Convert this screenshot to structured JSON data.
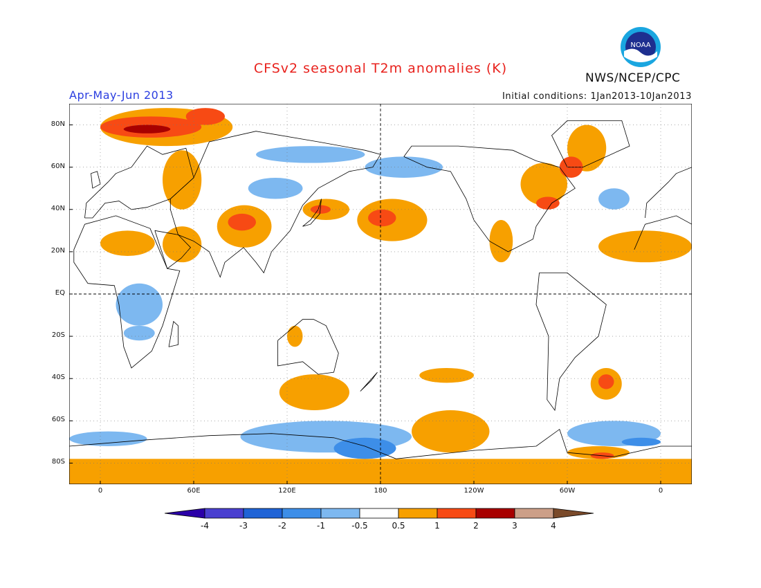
{
  "header": {
    "title": "CFSv2 seasonal T2m anomalies (K)",
    "period": "Apr-May-Jun 2013",
    "initial_conditions": "Initial conditions: 1Jan2013-10Jan2013",
    "agency": "NWS/NCEP/CPC",
    "logo_text": "NOAA",
    "title_color": "#e8211c",
    "period_color": "#2b3ee0"
  },
  "map": {
    "lon_range": [
      -20,
      380
    ],
    "lat_range": [
      -90,
      90
    ],
    "lat_ticks": [
      {
        "lat": 80,
        "label": "80N"
      },
      {
        "lat": 60,
        "label": "60N"
      },
      {
        "lat": 40,
        "label": "40N"
      },
      {
        "lat": 20,
        "label": "20N"
      },
      {
        "lat": 0,
        "label": "EQ"
      },
      {
        "lat": -20,
        "label": "20S"
      },
      {
        "lat": -40,
        "label": "40S"
      },
      {
        "lat": -60,
        "label": "60S"
      },
      {
        "lat": -80,
        "label": "80S"
      }
    ],
    "lon_ticks": [
      {
        "lon": 0,
        "label": "0"
      },
      {
        "lon": 60,
        "label": "60E"
      },
      {
        "lon": 120,
        "label": "120E"
      },
      {
        "lon": 180,
        "label": "180"
      },
      {
        "lon": 240,
        "label": "120W"
      },
      {
        "lon": 300,
        "label": "60W"
      },
      {
        "lon": 360,
        "label": "0"
      }
    ],
    "grid": true
  },
  "colorbar": {
    "labels": [
      "-4",
      "-3",
      "-2",
      "-1",
      "-0.5",
      "0.5",
      "1",
      "2",
      "3",
      "4"
    ],
    "colors": [
      "#2b00a8",
      "#4a3fd0",
      "#1f63d6",
      "#3d8ee8",
      "#7db8f0",
      "#ffffff",
      "#f7a000",
      "#f74a14",
      "#a80000",
      "#cc9f88",
      "#7a4a2a"
    ]
  },
  "anomaly_regions": [
    {
      "name": "Arctic Barents",
      "lon": [
        0,
        85
      ],
      "lat": [
        70,
        88
      ],
      "level": 1
    },
    {
      "name": "Svalbard core",
      "lon": [
        0,
        65
      ],
      "lat": [
        74,
        84
      ],
      "level": 2
    },
    {
      "name": "Kara Sea",
      "lon": [
        55,
        80
      ],
      "lat": [
        80,
        88
      ],
      "level": 2
    },
    {
      "name": "Svalbard peak",
      "lon": [
        15,
        45
      ],
      "lat": [
        76,
        80
      ],
      "level": 3
    },
    {
      "name": "Ural belt",
      "lon": [
        40,
        65
      ],
      "lat": [
        40,
        68
      ],
      "level": 1
    },
    {
      "name": "North Africa Sahara",
      "lon": [
        0,
        35
      ],
      "lat": [
        18,
        30
      ],
      "level": 1
    },
    {
      "name": "Arabia",
      "lon": [
        40,
        65
      ],
      "lat": [
        15,
        32
      ],
      "level": 1
    },
    {
      "name": "Tibet",
      "lon": [
        75,
        110
      ],
      "lat": [
        22,
        42
      ],
      "level": 1
    },
    {
      "name": "Tibet core",
      "lon": [
        82,
        100
      ],
      "lat": [
        30,
        38
      ],
      "level": 2
    },
    {
      "name": "Japan",
      "lon": [
        130,
        160
      ],
      "lat": [
        35,
        45
      ],
      "level": 1
    },
    {
      "name": "Japan core",
      "lon": [
        135,
        148
      ],
      "lat": [
        38,
        42
      ],
      "level": 2
    },
    {
      "name": "North Pacific",
      "lon": [
        165,
        210
      ],
      "lat": [
        25,
        45
      ],
      "level": 1
    },
    {
      "name": "North Pacific core",
      "lon": [
        172,
        190
      ],
      "lat": [
        32,
        40
      ],
      "level": 2
    },
    {
      "name": "Central Canada",
      "lon": [
        270,
        300
      ],
      "lat": [
        42,
        62
      ],
      "level": 1
    },
    {
      "name": "Labrador",
      "lon": [
        295,
        310
      ],
      "lat": [
        55,
        65
      ],
      "level": 2
    },
    {
      "name": "Great Lakes",
      "lon": [
        280,
        295
      ],
      "lat": [
        40,
        46
      ],
      "level": 2
    },
    {
      "name": "Greenland coast",
      "lon": [
        300,
        325
      ],
      "lat": [
        58,
        80
      ],
      "level": 1
    },
    {
      "name": "Mexico",
      "lon": [
        250,
        265
      ],
      "lat": [
        15,
        35
      ],
      "level": 1
    },
    {
      "name": "Atlantic",
      "lon": [
        320,
        380
      ],
      "lat": [
        15,
        30
      ],
      "level": 1
    },
    {
      "name": "South Atlantic",
      "lon": [
        315,
        335
      ],
      "lat": [
        -50,
        -35
      ],
      "level": 1
    },
    {
      "name": "South Atlantic core",
      "lon": [
        320,
        330
      ],
      "lat": [
        -45,
        -38
      ],
      "level": 2
    },
    {
      "name": "Australia west",
      "lon": [
        120,
        130
      ],
      "lat": [
        -25,
        -15
      ],
      "level": 1
    },
    {
      "name": "South Indian Ocean",
      "lon": [
        115,
        160
      ],
      "lat": [
        -55,
        -38
      ],
      "level": 1
    },
    {
      "name": "South Pacific",
      "lon": [
        200,
        250
      ],
      "lat": [
        -75,
        -55
      ],
      "level": 1
    },
    {
      "name": "South Pacific north",
      "lon": [
        205,
        240
      ],
      "lat": [
        -42,
        -35
      ],
      "level": 1
    },
    {
      "name": "Antarctic coast",
      "lon": [
        -20,
        380
      ],
      "lat": [
        -90,
        -78
      ],
      "level": 1
    },
    {
      "name": "Antarctic Weddell",
      "lon": [
        300,
        340
      ],
      "lat": [
        -78,
        -72
      ],
      "level": 1
    },
    {
      "name": "Weddell core",
      "lon": [
        315,
        330
      ],
      "lat": [
        -78,
        -75
      ],
      "level": 2
    },
    {
      "name": "Southern Ocean Pacific",
      "lon": [
        90,
        200
      ],
      "lat": [
        -75,
        -60
      ],
      "level": -1
    },
    {
      "name": "Southern Ocean core",
      "lon": [
        150,
        190
      ],
      "lat": [
        -78,
        -68
      ],
      "level": -2
    },
    {
      "name": "Southern Ocean Atlantic",
      "lon": [
        300,
        360
      ],
      "lat": [
        -72,
        -60
      ],
      "level": -1
    },
    {
      "name": "Southern Ocean west",
      "lon": [
        -20,
        30
      ],
      "lat": [
        -72,
        -65
      ],
      "level": -1
    },
    {
      "name": "Weddell cold core",
      "lon": [
        335,
        360
      ],
      "lat": [
        -72,
        -68
      ],
      "level": -2
    },
    {
      "name": "Bering Sea",
      "lon": [
        170,
        220
      ],
      "lat": [
        55,
        65
      ],
      "level": -1
    },
    {
      "name": "Siberia north",
      "lon": [
        100,
        170
      ],
      "lat": [
        62,
        70
      ],
      "level": -1
    },
    {
      "name": "Mongolia",
      "lon": [
        95,
        130
      ],
      "lat": [
        45,
        55
      ],
      "level": -1
    },
    {
      "name": "Central Africa",
      "lon": [
        10,
        40
      ],
      "lat": [
        -15,
        5
      ],
      "level": -1
    },
    {
      "name": "Southern Africa",
      "lon": [
        15,
        35
      ],
      "lat": [
        -22,
        -15
      ],
      "level": -1
    },
    {
      "name": "North Atlantic",
      "lon": [
        320,
        340
      ],
      "lat": [
        40,
        50
      ],
      "level": -1
    }
  ]
}
